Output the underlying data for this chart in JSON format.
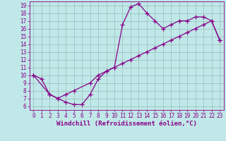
{
  "xlabel": "Windchill (Refroidissement éolien,°C)",
  "bg_color": "#c0e8e8",
  "line_color": "#880088",
  "marker": "+",
  "linewidth": 0.9,
  "markersize": 4,
  "markeredgewidth": 0.9,
  "xlim": [
    -0.5,
    23.5
  ],
  "ylim": [
    5.5,
    19.5
  ],
  "xticks": [
    0,
    1,
    2,
    3,
    4,
    5,
    6,
    7,
    8,
    9,
    10,
    11,
    12,
    13,
    14,
    15,
    16,
    17,
    18,
    19,
    20,
    21,
    22,
    23
  ],
  "yticks": [
    6,
    7,
    8,
    9,
    10,
    11,
    12,
    13,
    14,
    15,
    16,
    17,
    18,
    19
  ],
  "grid_color": "#99bbbb",
  "series1_x": [
    0,
    1,
    2,
    3,
    4,
    5,
    6,
    7,
    8,
    9,
    10,
    11,
    12,
    13,
    14,
    15,
    16,
    17,
    18,
    19,
    20,
    21,
    22,
    23
  ],
  "series1_y": [
    10,
    9.5,
    7.5,
    7.0,
    6.5,
    6.2,
    6.2,
    7.5,
    9.5,
    10.5,
    11.0,
    16.5,
    18.8,
    19.2,
    18.0,
    17.0,
    16.0,
    16.5,
    17.0,
    17.0,
    17.5,
    17.5,
    17.0,
    14.5
  ],
  "series2_x": [
    0,
    2,
    3,
    4,
    5,
    7,
    8,
    9,
    10,
    11,
    12,
    13,
    14,
    15,
    16,
    17,
    18,
    19,
    20,
    21,
    22,
    23
  ],
  "series2_y": [
    10,
    7.5,
    7.0,
    7.5,
    8.0,
    9.0,
    10.0,
    10.5,
    11.0,
    11.5,
    12.0,
    12.5,
    13.0,
    13.5,
    14.0,
    14.5,
    15.0,
    15.5,
    16.0,
    16.5,
    17.0,
    14.5
  ],
  "tick_fontsize": 5.5,
  "xlabel_fontsize": 6.5
}
